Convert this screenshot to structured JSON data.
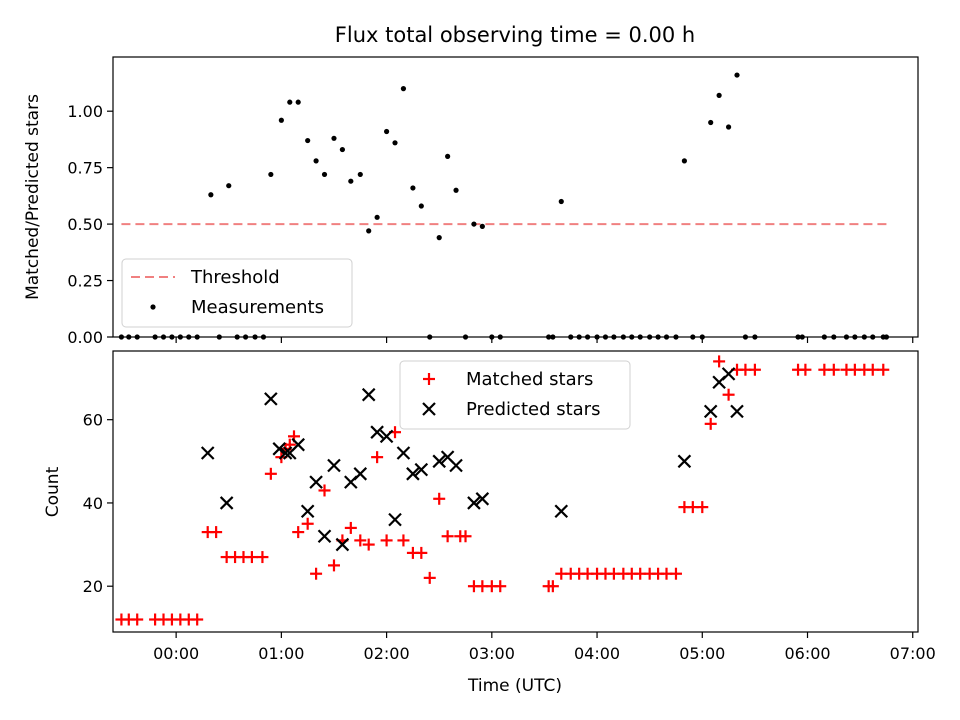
{
  "chart_data": [
    {
      "type": "scatter",
      "title": "Flux total observing time = 0.00 h",
      "xlabel": "",
      "ylabel": "Matched/Predicted stars",
      "xlim": [
        -0.6,
        7.05
      ],
      "ylim": [
        0,
        1.24
      ],
      "yticks": [
        0,
        0.25,
        0.5,
        0.75,
        1.0
      ],
      "ytick_labels": [
        "0.00",
        "0.25",
        "0.50",
        "0.75",
        "1.00"
      ],
      "xticks": [
        0,
        1,
        2,
        3,
        4,
        5,
        6,
        7
      ],
      "grid": false,
      "legend_position": "lower-left",
      "series": [
        {
          "name": "Threshold",
          "kind": "dashed-line",
          "color": "#f08080",
          "x": [
            -0.52,
            6.75
          ],
          "y": [
            0.5,
            0.5
          ]
        },
        {
          "name": "Measurements",
          "kind": "dot",
          "color": "#000000",
          "x": [
            -0.52,
            -0.45,
            -0.37,
            -0.2,
            -0.12,
            -0.04,
            0.04,
            0.12,
            0.2,
            0.33,
            0.41,
            0.5,
            0.58,
            0.66,
            0.75,
            0.83,
            0.9,
            1.0,
            1.08,
            1.16,
            1.25,
            1.33,
            1.41,
            1.5,
            1.58,
            1.66,
            1.75,
            1.83,
            1.91,
            2.0,
            2.08,
            2.16,
            2.25,
            2.33,
            2.41,
            2.5,
            2.58,
            2.66,
            2.75,
            2.83,
            2.91,
            3.0,
            3.08,
            3.54,
            3.58,
            3.66,
            3.75,
            3.83,
            3.91,
            4.0,
            4.08,
            4.16,
            4.25,
            4.33,
            4.41,
            4.5,
            4.58,
            4.66,
            4.75,
            4.83,
            4.91,
            5.0,
            5.08,
            5.16,
            5.25,
            5.33,
            5.41,
            5.5,
            5.91,
            5.95,
            6.16,
            6.25,
            6.37,
            6.45,
            6.54,
            6.62,
            6.72,
            6.75
          ],
          "y": [
            0,
            0,
            0,
            0,
            0,
            0,
            0,
            0,
            0,
            0.63,
            0,
            0.67,
            0,
            0,
            0,
            0,
            0.72,
            0.96,
            1.04,
            1.04,
            0.87,
            0.78,
            0.72,
            0.88,
            0.83,
            0.69,
            0.72,
            0.47,
            0.53,
            0.91,
            0.86,
            1.1,
            0.66,
            0.58,
            0,
            0.44,
            0.8,
            0.65,
            0,
            0.5,
            0.49,
            0,
            0,
            0,
            0,
            0.6,
            0,
            0,
            0,
            0,
            0,
            0,
            0,
            0,
            0,
            0,
            0,
            0,
            0,
            0.78,
            0,
            0,
            0.95,
            1.07,
            0.93,
            1.16,
            0,
            0,
            0,
            0,
            0,
            0,
            0,
            0,
            0,
            0,
            0,
            0
          ]
        }
      ]
    },
    {
      "type": "scatter",
      "title": "",
      "xlabel": "Time (UTC)",
      "ylabel": "Count",
      "xlim": [
        -0.6,
        7.05
      ],
      "ylim": [
        9,
        76.5
      ],
      "yticks": [
        20,
        40,
        60
      ],
      "ytick_labels": [
        "20",
        "40",
        "60"
      ],
      "xticks": [
        0,
        1,
        2,
        3,
        4,
        5,
        6,
        7
      ],
      "xtick_labels": [
        "00:00",
        "01:00",
        "02:00",
        "03:00",
        "04:00",
        "05:00",
        "06:00",
        "07:00"
      ],
      "grid": false,
      "legend_position": "upper-center",
      "series": [
        {
          "name": "Matched stars",
          "kind": "plus",
          "color": "#ff0000",
          "x": [
            -0.52,
            -0.45,
            -0.37,
            -0.2,
            -0.12,
            -0.04,
            0.04,
            0.12,
            0.2,
            0.3,
            0.38,
            0.48,
            0.56,
            0.64,
            0.72,
            0.82,
            0.9,
            1.0,
            1.04,
            1.08,
            1.12,
            1.16,
            1.25,
            1.33,
            1.41,
            1.5,
            1.58,
            1.66,
            1.75,
            1.83,
            1.91,
            2.0,
            2.08,
            2.16,
            2.25,
            2.33,
            2.41,
            2.5,
            2.58,
            2.7,
            2.75,
            2.83,
            2.91,
            3.0,
            3.08,
            3.54,
            3.58,
            3.66,
            3.75,
            3.83,
            3.91,
            4.0,
            4.08,
            4.16,
            4.25,
            4.33,
            4.41,
            4.5,
            4.58,
            4.66,
            4.75,
            4.83,
            4.91,
            5.0,
            5.08,
            5.16,
            5.25,
            5.33,
            5.41,
            5.5,
            5.91,
            5.98,
            6.16,
            6.25,
            6.37,
            6.45,
            6.54,
            6.62,
            6.72
          ],
          "y": [
            12,
            12,
            12,
            12,
            12,
            12,
            12,
            12,
            12,
            33,
            33,
            27,
            27,
            27,
            27,
            27,
            47,
            51,
            53,
            54,
            56,
            33,
            35,
            23,
            43,
            25,
            31,
            34,
            31,
            30,
            51,
            31,
            57,
            31,
            28,
            28,
            22,
            41,
            32,
            32,
            32,
            20,
            20,
            20,
            20,
            20,
            20,
            23,
            23,
            23,
            23,
            23,
            23,
            23,
            23,
            23,
            23,
            23,
            23,
            23,
            23,
            39,
            39,
            39,
            59,
            74,
            66,
            72,
            72,
            72,
            72,
            72,
            72,
            72,
            72,
            72,
            72,
            72,
            72
          ]
        },
        {
          "name": "Predicted stars",
          "kind": "x",
          "color": "#000000",
          "x": [
            0.3,
            0.48,
            0.9,
            0.98,
            1.04,
            1.08,
            1.16,
            1.25,
            1.33,
            1.41,
            1.5,
            1.58,
            1.66,
            1.75,
            1.83,
            1.91,
            2.0,
            2.08,
            2.16,
            2.25,
            2.33,
            2.5,
            2.58,
            2.66,
            2.83,
            2.91,
            3.66,
            4.83,
            5.08,
            5.16,
            5.25,
            5.33
          ],
          "y": [
            52,
            40,
            65,
            53,
            52,
            52,
            54,
            38,
            45,
            32,
            49,
            30,
            45,
            47,
            66,
            57,
            56,
            36,
            52,
            47,
            48,
            50,
            51,
            49,
            40,
            41,
            38,
            50,
            62,
            69,
            71,
            62
          ]
        }
      ]
    }
  ]
}
